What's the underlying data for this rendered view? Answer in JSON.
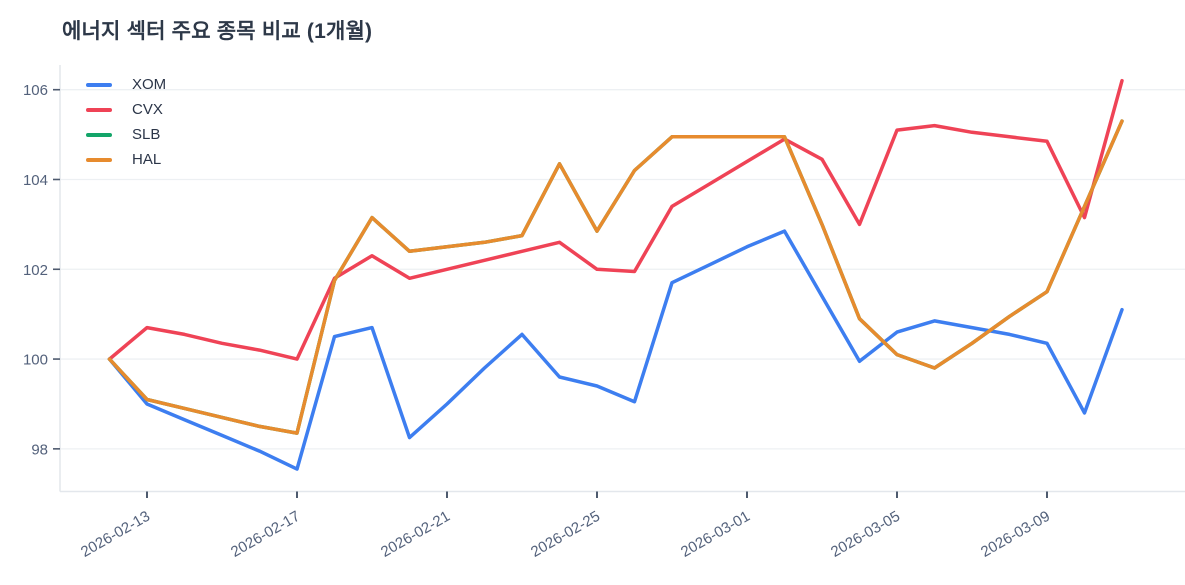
{
  "title": "에너지 섹터 주요 종목 비교 (1개월)",
  "colors": {
    "background": "#ffffff",
    "grid": "#edf0f3",
    "axis_line": "#e3e7ec",
    "tick_mark": "#4e5a6e",
    "tick_label": "#53617b",
    "title_text": "#2d3848",
    "legend_text": "#2b3548"
  },
  "chart_data": {
    "type": "line",
    "title": "에너지 섹터 주요 종목 비교 (1개월)",
    "x": [
      "2026-02-12",
      "2026-02-13",
      "2026-02-14",
      "2026-02-15",
      "2026-02-16",
      "2026-02-17",
      "2026-02-18",
      "2026-02-19",
      "2026-02-20",
      "2026-02-21",
      "2026-02-22",
      "2026-02-23",
      "2026-02-24",
      "2026-02-25",
      "2026-02-26",
      "2026-02-27",
      "2026-02-28",
      "2026-03-01",
      "2026-03-02",
      "2026-03-03",
      "2026-03-04",
      "2026-03-05",
      "2026-03-06",
      "2026-03-07",
      "2026-03-08",
      "2026-03-09",
      "2026-03-10",
      "2026-03-11"
    ],
    "x_tick_indices": [
      1,
      5,
      9,
      13,
      17,
      21,
      25
    ],
    "x_tick_labels": [
      "2026-02-13",
      "2026-02-17",
      "2026-02-21",
      "2026-02-25",
      "2026-03-01",
      "2026-03-05",
      "2026-03-09"
    ],
    "y_ticks": [
      98,
      100,
      102,
      104,
      106
    ],
    "ylim": [
      97.05,
      106.55
    ],
    "grid": "horizontal",
    "legend_position": "top-left",
    "series": [
      {
        "name": "XOM",
        "color": "#3d7ef0",
        "values": [
          100,
          99.0,
          98.65,
          98.3,
          97.95,
          97.55,
          100.5,
          100.7,
          98.25,
          99.0,
          99.8,
          100.55,
          99.6,
          99.4,
          99.05,
          101.7,
          102.1,
          102.5,
          102.85,
          101.4,
          99.95,
          100.6,
          100.85,
          100.7,
          100.55,
          100.35,
          98.8,
          101.1
        ]
      },
      {
        "name": "CVX",
        "color": "#ef4356",
        "values": [
          100,
          100.7,
          100.55,
          100.35,
          100.2,
          100.0,
          101.8,
          102.3,
          101.8,
          102.0,
          102.2,
          102.4,
          102.6,
          102.0,
          101.95,
          103.4,
          103.9,
          104.4,
          104.9,
          104.45,
          103.0,
          105.1,
          105.2,
          105.05,
          104.95,
          104.85,
          103.15,
          106.2
        ]
      },
      {
        "name": "SLB",
        "color": "#13a569",
        "values": [
          100,
          99.1,
          98.9,
          98.7,
          98.5,
          98.35,
          101.75,
          103.15,
          102.4,
          102.5,
          102.6,
          102.75,
          104.35,
          102.85,
          104.2,
          104.95,
          104.95,
          104.95,
          104.95,
          103.0,
          100.9,
          100.1,
          99.8,
          100.35,
          100.95,
          101.5,
          103.4,
          105.3
        ]
      },
      {
        "name": "HAL",
        "color": "#e78b2e",
        "values": [
          100,
          99.1,
          98.9,
          98.7,
          98.5,
          98.35,
          101.75,
          103.15,
          102.4,
          102.5,
          102.6,
          102.75,
          104.35,
          102.85,
          104.2,
          104.95,
          104.95,
          104.95,
          104.95,
          103.0,
          100.9,
          100.1,
          99.8,
          100.35,
          100.95,
          101.5,
          103.4,
          105.3
        ]
      }
    ]
  }
}
